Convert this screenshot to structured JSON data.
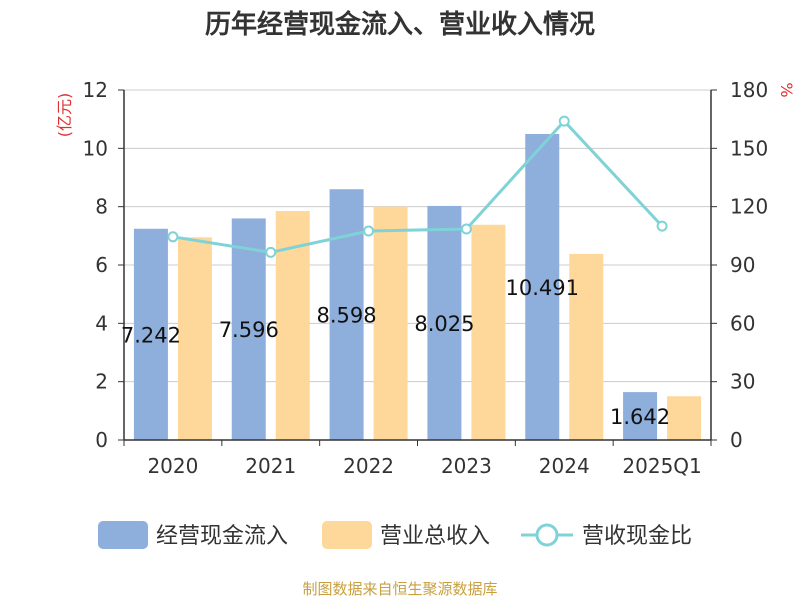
{
  "chart_data": {
    "type": "bar",
    "title": "历年经营现金流入、营业收入情况",
    "categories": [
      "2020",
      "2021",
      "2022",
      "2023",
      "2024",
      "2025Q1"
    ],
    "series": [
      {
        "name": "经营现金流入",
        "kind": "bar",
        "axis": "left",
        "color": "#8eaedc",
        "values": [
          7.242,
          7.596,
          8.598,
          8.025,
          10.491,
          1.642
        ]
      },
      {
        "name": "营业总收入",
        "kind": "bar",
        "axis": "left",
        "color": "#fdd89a",
        "values": [
          6.95,
          7.85,
          8.0,
          7.38,
          6.38,
          1.5
        ]
      },
      {
        "name": "营收现金比",
        "kind": "line",
        "axis": "right",
        "color": "#7fd3d6",
        "values": [
          104.5,
          96.5,
          107.5,
          108.5,
          164.0,
          110.0
        ]
      }
    ],
    "data_labels": [
      "7.242",
      "7.596",
      "8.598",
      "8.025",
      "10.491",
      "1.642"
    ],
    "left_axis": {
      "unit": "(亿元)",
      "ylim": [
        0,
        12
      ],
      "ticks": [
        "0",
        "2",
        "4",
        "6",
        "8",
        "10",
        "12"
      ]
    },
    "right_axis": {
      "unit": "%",
      "ylim": [
        0,
        180
      ],
      "ticks": [
        "0",
        "30",
        "60",
        "90",
        "120",
        "150",
        "180"
      ]
    },
    "grid": true,
    "legend_position": "bottom"
  },
  "source": "制图数据来自恒生聚源数据库",
  "colors": {
    "unit": "#e03030",
    "source": "#c8a040",
    "axis": "#333333",
    "grid": "#cccccc"
  }
}
